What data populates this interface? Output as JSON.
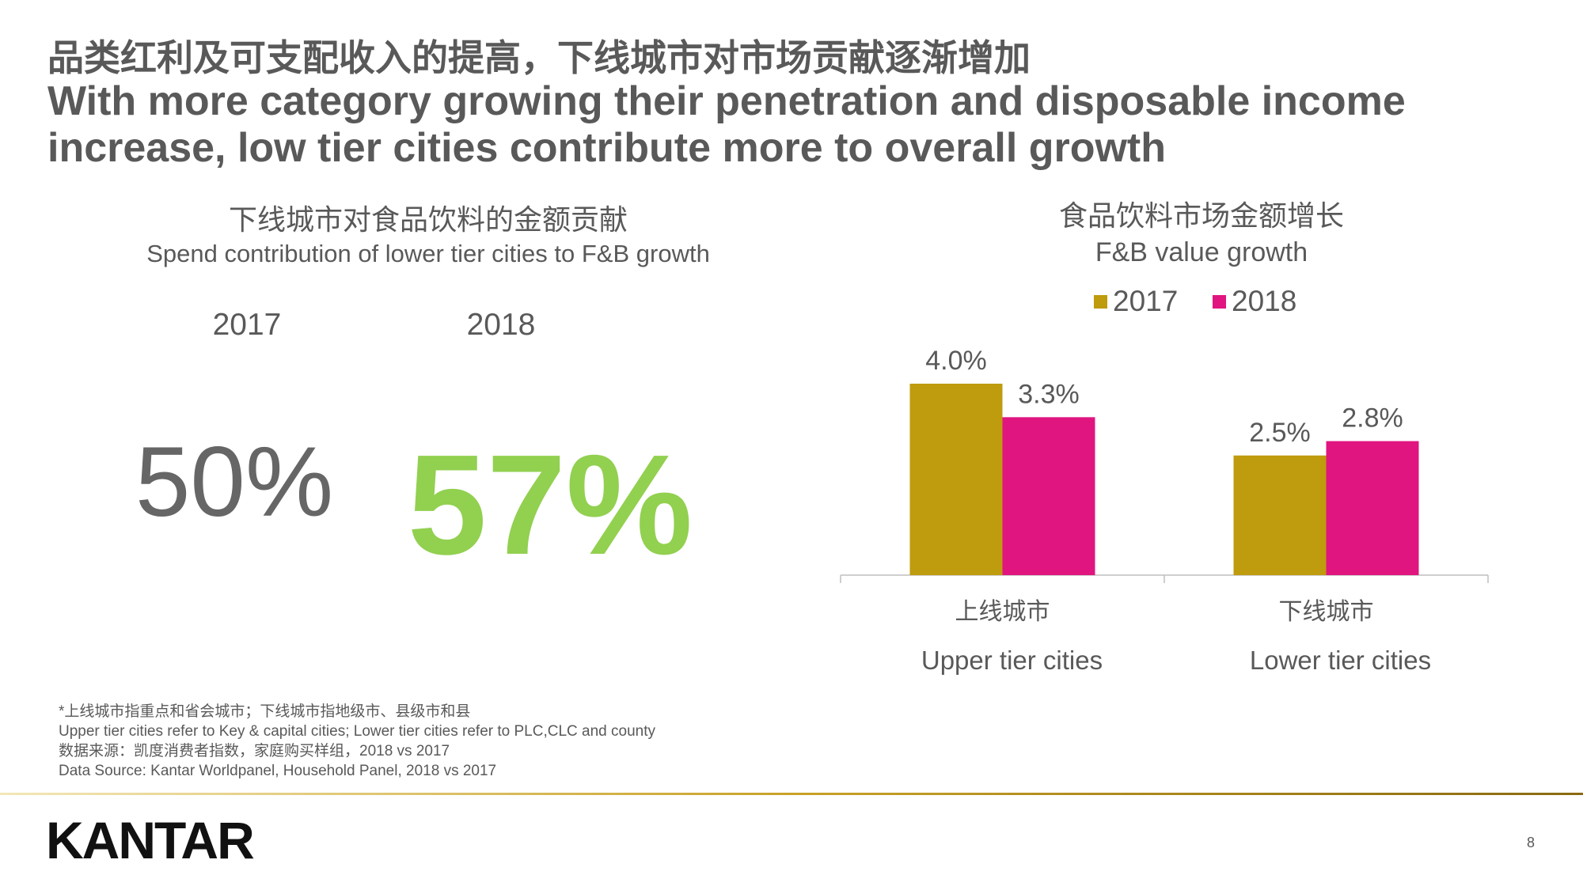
{
  "header": {
    "title_cn": "品类红利及可支配收入的提高，下线城市对市场贡献逐渐增加",
    "title_en": [
      "With more category growing their penetration and disposable income",
      "increase, low tier cities contribute more to overall growth"
    ]
  },
  "left_panel": {
    "title": "下线城市对食品饮料的金额贡献",
    "subtitle": "Spend contribution of lower tier cities to F&B growth",
    "items": [
      {
        "year": "2017",
        "value": "50%"
      },
      {
        "year": "2018",
        "value": "57%"
      }
    ]
  },
  "chart_data": {
    "type": "bar",
    "title": "食品饮料市场金额增长",
    "subtitle": "F&B value growth",
    "categories": [
      "上线城市",
      "下线城市"
    ],
    "categories_en": [
      "Upper tier cities",
      "Lower tier cities"
    ],
    "series": [
      {
        "name": "2017",
        "color": "#bf9b0e",
        "values": [
          4.0,
          2.5
        ],
        "value_labels": [
          "4.0%",
          "2.5%"
        ]
      },
      {
        "name": "2018",
        "color": "#e0157f",
        "values": [
          3.3,
          2.8
        ],
        "value_labels": [
          "3.3%",
          "2.8%"
        ]
      }
    ]
  },
  "footnotes": [
    "*上线城市指重点和省会城市；下线城市指地级市、县级市和县",
    "Upper tier cities refer to Key & capital cities; Lower tier cities refer to PLC,CLC and county",
    "数据来源：凯度消费者指数，家庭购买样组，2018 vs 2017",
    "Data Source: Kantar Worldpanel, Household Panel, 2018 vs 2017"
  ],
  "footer": {
    "logo": "KANTAR",
    "page": "8"
  }
}
